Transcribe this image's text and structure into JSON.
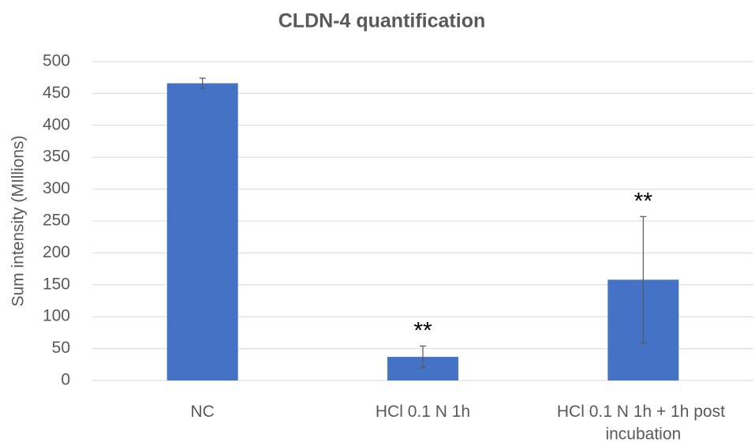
{
  "chart_data": {
    "type": "bar",
    "title": "CLDN-4 quantification",
    "y_label": "Sum intensity (MIllions)",
    "categories": [
      "NC",
      "HCl 0.1 N 1h",
      "HCl 0.1 N 1h + 1h post incubation"
    ],
    "values": [
      466,
      37,
      158
    ],
    "errors": [
      8,
      17,
      99
    ],
    "annotations": [
      null,
      "**",
      "**"
    ],
    "color": "#4472c4",
    "ylim": [
      0,
      500
    ],
    "yticks": [
      0,
      50,
      100,
      150,
      200,
      250,
      300,
      350,
      400,
      450,
      500
    ],
    "grid": true
  }
}
